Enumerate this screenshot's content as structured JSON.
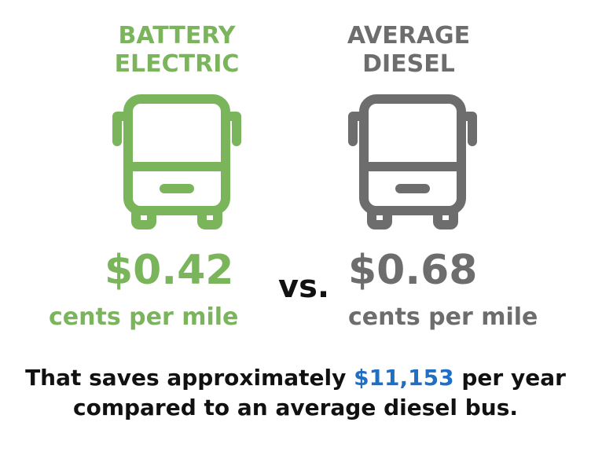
{
  "electric": {
    "title_line1": "BATTERY",
    "title_line2": "ELECTRIC",
    "price": "$0.42",
    "unit": "cents per mile",
    "icon": "bus-icon",
    "color": "#7ab55c"
  },
  "vs_label": "vs.",
  "diesel": {
    "title_line1": "AVERAGE",
    "title_line2": "DIESEL",
    "price": "$0.68",
    "unit": "cents per mile",
    "icon": "bus-icon",
    "color": "#6d6d6d"
  },
  "footer": {
    "prefix": "That saves approximately ",
    "amount": "$11,153",
    "suffix": " per year",
    "line2": "compared to an average diesel bus.",
    "amount_color": "#1f6fc5"
  }
}
